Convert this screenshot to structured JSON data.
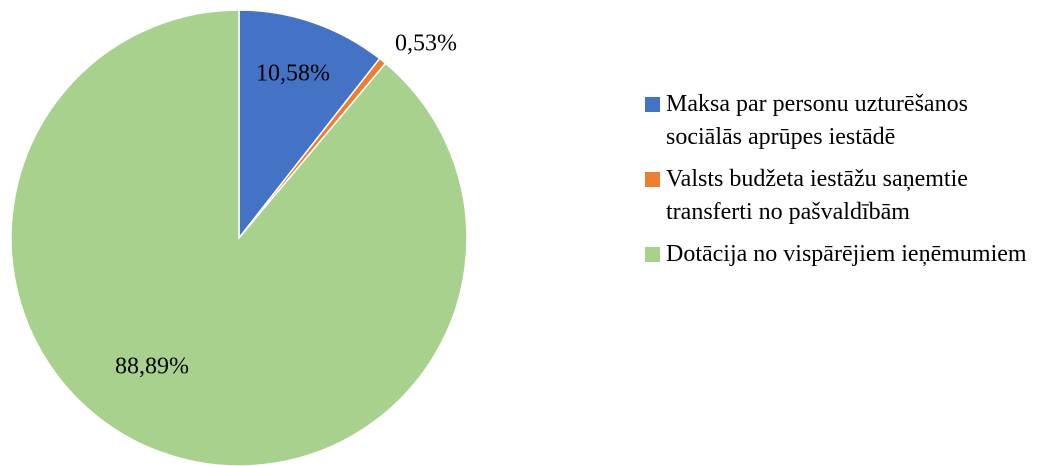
{
  "chart_data": {
    "type": "pie",
    "categories": [
      "Maksa par personu uzturēšanos sociālās aprūpes iestādē",
      "Valsts budžeta iestāžu saņemtie transferti no pašvaldībām",
      "Dotācija no vispārējiem ieņēmumiem"
    ],
    "values": [
      10.58,
      0.53,
      88.89
    ],
    "value_labels": [
      "10,58%",
      "0,53%",
      "88,89%"
    ],
    "colors": [
      "#4472c4",
      "#ed7d31",
      "#a9d18e"
    ],
    "legend": "right"
  }
}
